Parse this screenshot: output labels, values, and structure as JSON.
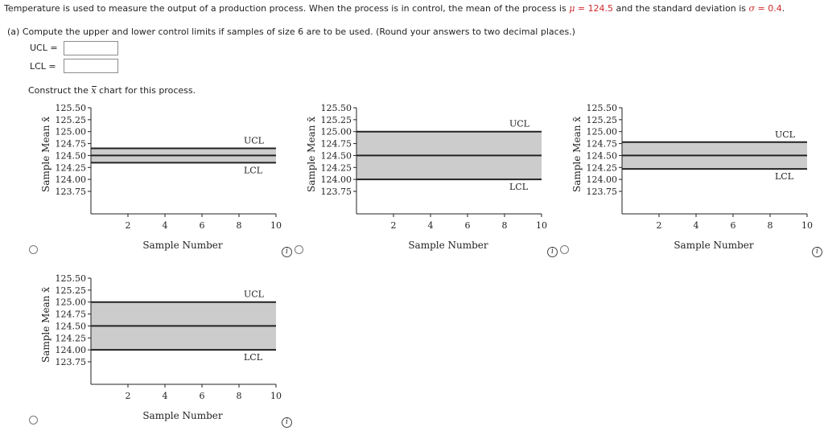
{
  "question": {
    "intro_prefix": "Temperature is used to measure the output of a production process. When the process is in control, the mean of the process is ",
    "mu_symbol": "μ",
    "eq": " = ",
    "mu_value": "124.5",
    "intro_middle": " and the standard deviation is ",
    "sigma_symbol": "σ",
    "sigma_value": "0.4",
    "intro_end": ".",
    "part_a": "(a)  Compute the upper and lower control limits if samples of size 6 are to be used. (Round your answers to two decimal places.)",
    "ucl_label": "UCL  =",
    "lcl_label": "LCL  =",
    "ucl_value": "",
    "lcl_value": "",
    "construct_prefix": "Construct the ",
    "construct_x": "x",
    "construct_suffix": " chart for this process."
  },
  "chart_data": [
    {
      "type": "line",
      "xlabel": "Sample Number",
      "ylabel": "Sample Mean x̄",
      "x_ticks": [
        2,
        4,
        6,
        8,
        10
      ],
      "y_ticks": [
        "125.50",
        "125.25",
        "125.00",
        "124.75",
        "124.50",
        "124.25",
        "124.00",
        "123.75"
      ],
      "xlim": [
        0,
        10
      ],
      "ylim": [
        123.75,
        125.5
      ],
      "center_line": 124.5,
      "ucl": 124.65,
      "lcl": 124.35,
      "ucl_label": "UCL",
      "lcl_label": "LCL"
    },
    {
      "type": "line",
      "xlabel": "Sample Number",
      "ylabel": "Sample Mean x̄",
      "x_ticks": [
        2,
        4,
        6,
        8,
        10
      ],
      "y_ticks": [
        "125.50",
        "125.25",
        "125.00",
        "124.75",
        "124.50",
        "124.25",
        "124.00",
        "123.75"
      ],
      "xlim": [
        0,
        10
      ],
      "ylim": [
        123.75,
        125.5
      ],
      "center_line": 124.5,
      "ucl": 125.0,
      "lcl": 124.0,
      "ucl_label": "UCL",
      "lcl_label": "LCL"
    },
    {
      "type": "line",
      "xlabel": "Sample Number",
      "ylabel": "Sample Mean x̄",
      "x_ticks": [
        2,
        4,
        6,
        8,
        10
      ],
      "y_ticks": [
        "125.50",
        "125.25",
        "125.00",
        "124.75",
        "124.50",
        "124.25",
        "124.00",
        "123.75"
      ],
      "xlim": [
        0,
        10
      ],
      "ylim": [
        123.75,
        125.5
      ],
      "center_line": 124.5,
      "ucl": 124.78,
      "lcl": 124.22,
      "ucl_label": "UCL",
      "lcl_label": "LCL"
    },
    {
      "type": "line",
      "xlabel": "Sample Number",
      "ylabel": "Sample Mean x̄",
      "x_ticks": [
        2,
        4,
        6,
        8,
        10
      ],
      "y_ticks": [
        "125.50",
        "125.25",
        "125.00",
        "124.75",
        "124.50",
        "124.25",
        "124.00",
        "123.75"
      ],
      "xlim": [
        0,
        10
      ],
      "ylim": [
        123.75,
        125.5
      ],
      "center_line": 124.5,
      "ucl": 125.0,
      "lcl": 124.0,
      "ucl_label": "UCL",
      "lcl_label": "LCL"
    }
  ],
  "info_glyph": "i",
  "colors": {
    "band": "#cccccc",
    "line": "#222222",
    "accent_red": "#d0292b"
  }
}
